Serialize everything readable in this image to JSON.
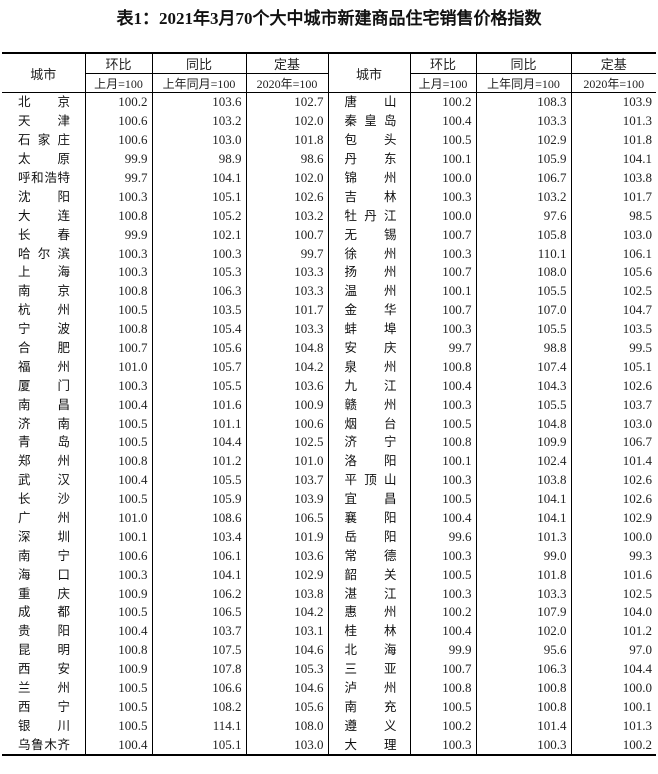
{
  "title": "表1：2021年3月70个大中城市新建商品住宅销售价格指数",
  "header": {
    "city": "城市",
    "mom": "环比",
    "yoy": "同比",
    "base": "定基",
    "mom_sub": "上月=100",
    "yoy_sub": "上年同月=100",
    "base_sub": "2020年=100"
  },
  "rows": [
    {
      "l": [
        "北京",
        "100.2",
        "103.6",
        "102.7"
      ],
      "r": [
        "唐山",
        "100.2",
        "108.3",
        "103.9"
      ]
    },
    {
      "l": [
        "天津",
        "100.6",
        "103.2",
        "102.0"
      ],
      "r": [
        "秦皇岛",
        "100.4",
        "103.3",
        "101.3"
      ]
    },
    {
      "l": [
        "石家庄",
        "100.6",
        "103.0",
        "101.8"
      ],
      "r": [
        "包头",
        "100.5",
        "102.9",
        "101.8"
      ]
    },
    {
      "l": [
        "太原",
        "99.9",
        "98.9",
        "98.6"
      ],
      "r": [
        "丹东",
        "100.1",
        "105.9",
        "104.1"
      ]
    },
    {
      "l": [
        "呼和浩特",
        "99.7",
        "104.1",
        "102.0"
      ],
      "r": [
        "锦州",
        "100.0",
        "106.7",
        "103.8"
      ]
    },
    {
      "l": [
        "沈阳",
        "100.3",
        "105.1",
        "102.6"
      ],
      "r": [
        "吉林",
        "100.3",
        "103.2",
        "101.7"
      ]
    },
    {
      "l": [
        "大连",
        "100.8",
        "105.2",
        "103.2"
      ],
      "r": [
        "牡丹江",
        "100.0",
        "97.6",
        "98.5"
      ]
    },
    {
      "l": [
        "长春",
        "99.9",
        "102.1",
        "100.7"
      ],
      "r": [
        "无锡",
        "100.7",
        "105.8",
        "103.0"
      ]
    },
    {
      "l": [
        "哈尔滨",
        "100.3",
        "100.3",
        "99.7"
      ],
      "r": [
        "徐州",
        "100.3",
        "110.1",
        "106.1"
      ]
    },
    {
      "l": [
        "上海",
        "100.3",
        "105.3",
        "103.3"
      ],
      "r": [
        "扬州",
        "100.7",
        "108.0",
        "105.6"
      ]
    },
    {
      "l": [
        "南京",
        "100.8",
        "106.3",
        "103.3"
      ],
      "r": [
        "温州",
        "100.1",
        "105.5",
        "102.5"
      ]
    },
    {
      "l": [
        "杭州",
        "100.5",
        "103.5",
        "101.7"
      ],
      "r": [
        "金华",
        "100.7",
        "107.0",
        "104.7"
      ]
    },
    {
      "l": [
        "宁波",
        "100.8",
        "105.4",
        "103.3"
      ],
      "r": [
        "蚌埠",
        "100.3",
        "105.5",
        "103.5"
      ]
    },
    {
      "l": [
        "合肥",
        "100.7",
        "105.6",
        "104.8"
      ],
      "r": [
        "安庆",
        "99.7",
        "98.8",
        "99.5"
      ]
    },
    {
      "l": [
        "福州",
        "101.0",
        "105.7",
        "104.2"
      ],
      "r": [
        "泉州",
        "100.8",
        "107.4",
        "105.1"
      ]
    },
    {
      "l": [
        "厦门",
        "100.3",
        "105.5",
        "103.6"
      ],
      "r": [
        "九江",
        "100.4",
        "104.3",
        "102.6"
      ]
    },
    {
      "l": [
        "南昌",
        "100.4",
        "101.6",
        "100.9"
      ],
      "r": [
        "赣州",
        "100.3",
        "105.5",
        "103.7"
      ]
    },
    {
      "l": [
        "济南",
        "100.5",
        "101.1",
        "100.6"
      ],
      "r": [
        "烟台",
        "100.5",
        "104.8",
        "103.0"
      ]
    },
    {
      "l": [
        "青岛",
        "100.5",
        "104.4",
        "102.5"
      ],
      "r": [
        "济宁",
        "100.8",
        "109.9",
        "106.7"
      ]
    },
    {
      "l": [
        "郑州",
        "100.8",
        "101.2",
        "101.0"
      ],
      "r": [
        "洛阳",
        "100.1",
        "102.4",
        "101.4"
      ]
    },
    {
      "l": [
        "武汉",
        "100.4",
        "105.5",
        "103.7"
      ],
      "r": [
        "平顶山",
        "100.3",
        "103.8",
        "102.6"
      ]
    },
    {
      "l": [
        "长沙",
        "100.5",
        "105.9",
        "103.9"
      ],
      "r": [
        "宜昌",
        "100.5",
        "104.1",
        "102.6"
      ]
    },
    {
      "l": [
        "广州",
        "101.0",
        "108.6",
        "106.5"
      ],
      "r": [
        "襄阳",
        "100.4",
        "104.1",
        "102.9"
      ]
    },
    {
      "l": [
        "深圳",
        "100.1",
        "103.4",
        "101.9"
      ],
      "r": [
        "岳阳",
        "99.6",
        "101.3",
        "100.0"
      ]
    },
    {
      "l": [
        "南宁",
        "100.6",
        "106.1",
        "103.6"
      ],
      "r": [
        "常德",
        "100.3",
        "99.0",
        "99.3"
      ]
    },
    {
      "l": [
        "海口",
        "100.3",
        "104.1",
        "102.9"
      ],
      "r": [
        "韶关",
        "100.5",
        "101.8",
        "101.6"
      ]
    },
    {
      "l": [
        "重庆",
        "100.9",
        "106.2",
        "103.8"
      ],
      "r": [
        "湛江",
        "100.3",
        "103.3",
        "102.5"
      ]
    },
    {
      "l": [
        "成都",
        "100.5",
        "106.5",
        "104.2"
      ],
      "r": [
        "惠州",
        "100.2",
        "107.9",
        "104.0"
      ]
    },
    {
      "l": [
        "贵阳",
        "100.4",
        "103.7",
        "103.1"
      ],
      "r": [
        "桂林",
        "100.4",
        "102.0",
        "101.2"
      ]
    },
    {
      "l": [
        "昆明",
        "100.8",
        "107.5",
        "104.6"
      ],
      "r": [
        "北海",
        "99.9",
        "95.6",
        "97.0"
      ]
    },
    {
      "l": [
        "西安",
        "100.9",
        "107.8",
        "105.3"
      ],
      "r": [
        "三亚",
        "100.7",
        "106.3",
        "104.4"
      ]
    },
    {
      "l": [
        "兰州",
        "100.5",
        "106.6",
        "104.6"
      ],
      "r": [
        "泸州",
        "100.8",
        "100.8",
        "100.0"
      ]
    },
    {
      "l": [
        "西宁",
        "100.5",
        "108.2",
        "105.6"
      ],
      "r": [
        "南充",
        "100.5",
        "100.8",
        "100.1"
      ]
    },
    {
      "l": [
        "银川",
        "100.5",
        "114.1",
        "108.0"
      ],
      "r": [
        "遵义",
        "100.2",
        "101.4",
        "101.3"
      ]
    },
    {
      "l": [
        "乌鲁木齐",
        "100.4",
        "105.1",
        "103.0"
      ],
      "r": [
        "大理",
        "100.3",
        "100.3",
        "100.2"
      ]
    }
  ]
}
